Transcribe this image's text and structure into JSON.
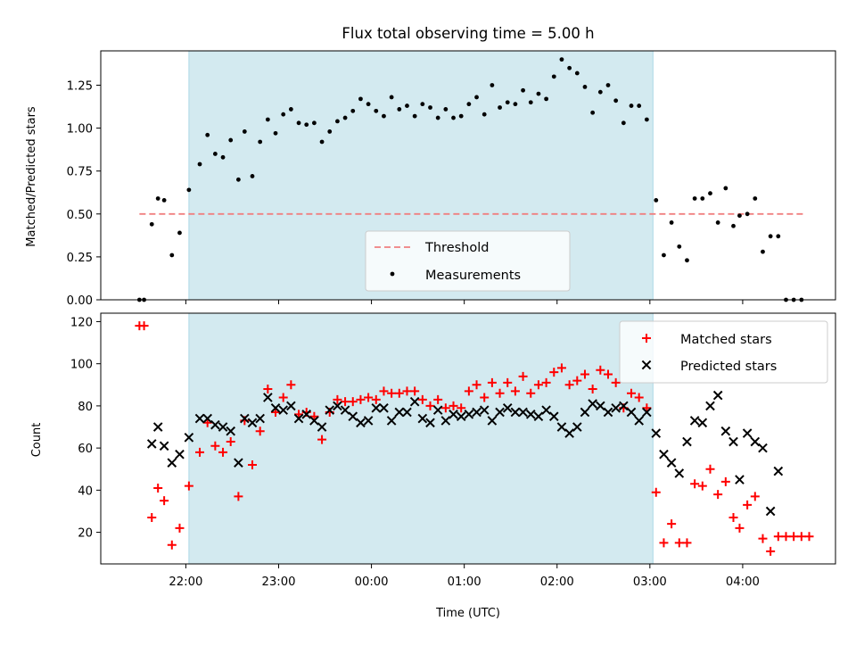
{
  "chart_data": [
    {
      "type": "scatter",
      "title": "Flux total observing time = 5.00 h",
      "xlabel": "",
      "ylabel": "Matched/Predicted stars",
      "xlim": [
        "21:05",
        "05:00"
      ],
      "ylim": [
        0,
        1.45
      ],
      "y_ticks": [
        "0.00",
        "0.25",
        "0.50",
        "0.75",
        "1.00",
        "1.25"
      ],
      "shaded_interval": [
        "22:02",
        "03:02"
      ],
      "legend_position": "lower center",
      "legend": [
        "Threshold",
        "Measurements"
      ],
      "threshold": {
        "name": "Threshold",
        "value": 0.5,
        "x_range": [
          "21:30",
          "04:40"
        ],
        "color": "#f08080"
      },
      "colors": {
        "shade": "#d3eaf0",
        "shade_edge": "#add8e6",
        "points": "#000000"
      },
      "series": [
        {
          "name": "Measurements",
          "marker": "dot",
          "points": [
            [
              "21:30",
              0.0
            ],
            [
              "21:33",
              0.0
            ],
            [
              "21:38",
              0.44
            ],
            [
              "21:42",
              0.59
            ],
            [
              "21:46",
              0.58
            ],
            [
              "21:51",
              0.26
            ],
            [
              "21:56",
              0.39
            ],
            [
              "22:02",
              0.64
            ],
            [
              "22:09",
              0.79
            ],
            [
              "22:14",
              0.96
            ],
            [
              "22:19",
              0.85
            ],
            [
              "22:24",
              0.83
            ],
            [
              "22:29",
              0.93
            ],
            [
              "22:34",
              0.7
            ],
            [
              "22:38",
              0.98
            ],
            [
              "22:43",
              0.72
            ],
            [
              "22:48",
              0.92
            ],
            [
              "22:53",
              1.05
            ],
            [
              "22:58",
              0.97
            ],
            [
              "23:03",
              1.08
            ],
            [
              "23:08",
              1.11
            ],
            [
              "23:13",
              1.03
            ],
            [
              "23:18",
              1.02
            ],
            [
              "23:23",
              1.03
            ],
            [
              "23:28",
              0.92
            ],
            [
              "23:33",
              0.98
            ],
            [
              "23:38",
              1.04
            ],
            [
              "23:43",
              1.06
            ],
            [
              "23:48",
              1.1
            ],
            [
              "23:53",
              1.17
            ],
            [
              "23:58",
              1.14
            ],
            [
              "00:03",
              1.1
            ],
            [
              "00:08",
              1.07
            ],
            [
              "00:13",
              1.18
            ],
            [
              "00:18",
              1.11
            ],
            [
              "00:23",
              1.13
            ],
            [
              "00:28",
              1.07
            ],
            [
              "00:33",
              1.14
            ],
            [
              "00:38",
              1.12
            ],
            [
              "00:43",
              1.06
            ],
            [
              "00:48",
              1.11
            ],
            [
              "00:53",
              1.06
            ],
            [
              "00:58",
              1.07
            ],
            [
              "01:03",
              1.14
            ],
            [
              "01:08",
              1.18
            ],
            [
              "01:13",
              1.08
            ],
            [
              "01:18",
              1.25
            ],
            [
              "01:23",
              1.12
            ],
            [
              "01:28",
              1.15
            ],
            [
              "01:33",
              1.14
            ],
            [
              "01:38",
              1.22
            ],
            [
              "01:43",
              1.15
            ],
            [
              "01:48",
              1.2
            ],
            [
              "01:53",
              1.17
            ],
            [
              "01:58",
              1.3
            ],
            [
              "02:03",
              1.4
            ],
            [
              "02:08",
              1.35
            ],
            [
              "02:13",
              1.32
            ],
            [
              "02:18",
              1.24
            ],
            [
              "02:23",
              1.09
            ],
            [
              "02:28",
              1.21
            ],
            [
              "02:33",
              1.25
            ],
            [
              "02:38",
              1.16
            ],
            [
              "02:43",
              1.03
            ],
            [
              "02:48",
              1.13
            ],
            [
              "02:53",
              1.13
            ],
            [
              "02:58",
              1.05
            ],
            [
              "03:04",
              0.58
            ],
            [
              "03:09",
              0.26
            ],
            [
              "03:14",
              0.45
            ],
            [
              "03:19",
              0.31
            ],
            [
              "03:24",
              0.23
            ],
            [
              "03:29",
              0.59
            ],
            [
              "03:34",
              0.59
            ],
            [
              "03:39",
              0.62
            ],
            [
              "03:44",
              0.45
            ],
            [
              "03:49",
              0.65
            ],
            [
              "03:54",
              0.43
            ],
            [
              "03:58",
              0.49
            ],
            [
              "04:03",
              0.5
            ],
            [
              "04:08",
              0.59
            ],
            [
              "04:13",
              0.28
            ],
            [
              "04:18",
              0.37
            ],
            [
              "04:23",
              0.37
            ],
            [
              "04:28",
              0.0
            ],
            [
              "04:33",
              0.0
            ],
            [
              "04:38",
              0.0
            ]
          ]
        }
      ]
    },
    {
      "type": "scatter",
      "title": "",
      "xlabel": "Time (UTC)",
      "ylabel": "Count",
      "xlim": [
        "21:05",
        "05:00"
      ],
      "ylim": [
        5,
        124
      ],
      "x_ticks": [
        "22:00",
        "23:00",
        "00:00",
        "01:00",
        "02:00",
        "03:00",
        "04:00"
      ],
      "y_ticks": [
        "20",
        "40",
        "60",
        "80",
        "100",
        "120"
      ],
      "shaded_interval": [
        "22:02",
        "03:02"
      ],
      "legend_position": "upper right",
      "legend": [
        "Matched stars",
        "Predicted stars"
      ],
      "colors": {
        "matched": "#ff0000",
        "predicted": "#000000"
      },
      "series": [
        {
          "name": "Matched stars",
          "marker": "plus",
          "points": [
            [
              "21:30",
              118
            ],
            [
              "21:33",
              118
            ],
            [
              "21:38",
              27
            ],
            [
              "21:42",
              41
            ],
            [
              "21:46",
              35
            ],
            [
              "21:51",
              14
            ],
            [
              "21:56",
              22
            ],
            [
              "22:02",
              42
            ],
            [
              "22:09",
              58
            ],
            [
              "22:14",
              72
            ],
            [
              "22:19",
              61
            ],
            [
              "22:24",
              58
            ],
            [
              "22:29",
              63
            ],
            [
              "22:34",
              37
            ],
            [
              "22:38",
              73
            ],
            [
              "22:43",
              52
            ],
            [
              "22:48",
              68
            ],
            [
              "22:53",
              88
            ],
            [
              "22:58",
              77
            ],
            [
              "23:03",
              84
            ],
            [
              "23:08",
              90
            ],
            [
              "23:13",
              76
            ],
            [
              "23:18",
              77
            ],
            [
              "23:23",
              75
            ],
            [
              "23:28",
              64
            ],
            [
              "23:33",
              77
            ],
            [
              "23:38",
              83
            ],
            [
              "23:43",
              82
            ],
            [
              "23:48",
              82
            ],
            [
              "23:53",
              83
            ],
            [
              "23:58",
              84
            ],
            [
              "00:03",
              83
            ],
            [
              "00:08",
              87
            ],
            [
              "00:13",
              86
            ],
            [
              "00:18",
              86
            ],
            [
              "00:23",
              87
            ],
            [
              "00:28",
              87
            ],
            [
              "00:33",
              83
            ],
            [
              "00:38",
              80
            ],
            [
              "00:43",
              83
            ],
            [
              "00:48",
              79
            ],
            [
              "00:53",
              80
            ],
            [
              "00:58",
              79
            ],
            [
              "01:03",
              87
            ],
            [
              "01:08",
              90
            ],
            [
              "01:13",
              84
            ],
            [
              "01:18",
              91
            ],
            [
              "01:23",
              86
            ],
            [
              "01:28",
              91
            ],
            [
              "01:33",
              87
            ],
            [
              "01:38",
              94
            ],
            [
              "01:43",
              86
            ],
            [
              "01:48",
              90
            ],
            [
              "01:53",
              91
            ],
            [
              "01:58",
              96
            ],
            [
              "02:03",
              98
            ],
            [
              "02:08",
              90
            ],
            [
              "02:13",
              92
            ],
            [
              "02:18",
              95
            ],
            [
              "02:23",
              88
            ],
            [
              "02:28",
              97
            ],
            [
              "02:33",
              95
            ],
            [
              "02:38",
              91
            ],
            [
              "02:43",
              79
            ],
            [
              "02:48",
              86
            ],
            [
              "02:53",
              84
            ],
            [
              "02:58",
              79
            ],
            [
              "03:04",
              39
            ],
            [
              "03:09",
              15
            ],
            [
              "03:14",
              24
            ],
            [
              "03:19",
              15
            ],
            [
              "03:24",
              15
            ],
            [
              "03:29",
              43
            ],
            [
              "03:34",
              42
            ],
            [
              "03:39",
              50
            ],
            [
              "03:44",
              38
            ],
            [
              "03:49",
              44
            ],
            [
              "03:54",
              27
            ],
            [
              "03:58",
              22
            ],
            [
              "04:03",
              33
            ],
            [
              "04:08",
              37
            ],
            [
              "04:13",
              17
            ],
            [
              "04:18",
              11
            ],
            [
              "04:23",
              18
            ],
            [
              "04:28",
              18
            ],
            [
              "04:33",
              18
            ],
            [
              "04:38",
              18
            ],
            [
              "04:43",
              18
            ]
          ]
        },
        {
          "name": "Predicted stars",
          "marker": "x",
          "points": [
            [
              "21:38",
              62
            ],
            [
              "21:42",
              70
            ],
            [
              "21:46",
              61
            ],
            [
              "21:51",
              53
            ],
            [
              "21:56",
              57
            ],
            [
              "22:02",
              65
            ],
            [
              "22:09",
              74
            ],
            [
              "22:14",
              74
            ],
            [
              "22:19",
              71
            ],
            [
              "22:24",
              70
            ],
            [
              "22:29",
              68
            ],
            [
              "22:34",
              53
            ],
            [
              "22:38",
              74
            ],
            [
              "22:43",
              72
            ],
            [
              "22:48",
              74
            ],
            [
              "22:53",
              84
            ],
            [
              "22:58",
              79
            ],
            [
              "23:03",
              78
            ],
            [
              "23:08",
              80
            ],
            [
              "23:13",
              74
            ],
            [
              "23:18",
              76
            ],
            [
              "23:23",
              73
            ],
            [
              "23:28",
              70
            ],
            [
              "23:33",
              78
            ],
            [
              "23:38",
              80
            ],
            [
              "23:43",
              78
            ],
            [
              "23:48",
              75
            ],
            [
              "23:53",
              72
            ],
            [
              "23:58",
              73
            ],
            [
              "00:03",
              79
            ],
            [
              "00:08",
              79
            ],
            [
              "00:13",
              73
            ],
            [
              "00:18",
              77
            ],
            [
              "00:23",
              77
            ],
            [
              "00:28",
              82
            ],
            [
              "00:33",
              74
            ],
            [
              "00:38",
              72
            ],
            [
              "00:43",
              78
            ],
            [
              "00:48",
              73
            ],
            [
              "00:53",
              76
            ],
            [
              "00:58",
              75
            ],
            [
              "01:03",
              76
            ],
            [
              "01:08",
              77
            ],
            [
              "01:13",
              78
            ],
            [
              "01:18",
              73
            ],
            [
              "01:23",
              77
            ],
            [
              "01:28",
              79
            ],
            [
              "01:33",
              77
            ],
            [
              "01:38",
              77
            ],
            [
              "01:43",
              76
            ],
            [
              "01:48",
              75
            ],
            [
              "01:53",
              78
            ],
            [
              "01:58",
              75
            ],
            [
              "02:03",
              70
            ],
            [
              "02:08",
              67
            ],
            [
              "02:13",
              70
            ],
            [
              "02:18",
              77
            ],
            [
              "02:23",
              81
            ],
            [
              "02:28",
              80
            ],
            [
              "02:33",
              77
            ],
            [
              "02:38",
              79
            ],
            [
              "02:43",
              80
            ],
            [
              "02:48",
              77
            ],
            [
              "02:53",
              73
            ],
            [
              "02:58",
              77
            ],
            [
              "03:04",
              67
            ],
            [
              "03:09",
              57
            ],
            [
              "03:14",
              53
            ],
            [
              "03:19",
              48
            ],
            [
              "03:24",
              63
            ],
            [
              "03:29",
              73
            ],
            [
              "03:34",
              72
            ],
            [
              "03:39",
              80
            ],
            [
              "03:44",
              85
            ],
            [
              "03:49",
              68
            ],
            [
              "03:54",
              63
            ],
            [
              "03:58",
              45
            ],
            [
              "04:03",
              67
            ],
            [
              "04:08",
              63
            ],
            [
              "04:13",
              60
            ],
            [
              "04:18",
              30
            ],
            [
              "04:23",
              49
            ]
          ]
        }
      ]
    }
  ]
}
